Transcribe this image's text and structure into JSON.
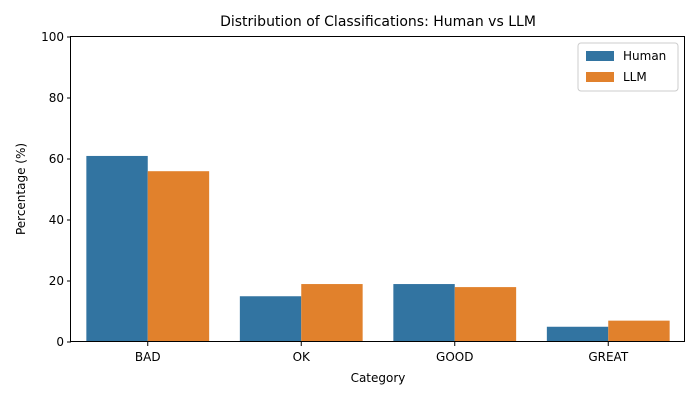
{
  "chart_data": {
    "type": "bar",
    "title": "Distribution of Classifications: Human vs LLM",
    "xlabel": "Category",
    "ylabel": "Percentage (%)",
    "categories": [
      "BAD",
      "OK",
      "GOOD",
      "GREAT"
    ],
    "series": [
      {
        "name": "Human",
        "values": [
          61,
          15,
          19,
          5
        ],
        "color": "#3274a1"
      },
      {
        "name": "LLM",
        "values": [
          56,
          19,
          18,
          7
        ],
        "color": "#e1812c"
      }
    ],
    "ylim": [
      0,
      100
    ],
    "yticks": [
      "0",
      "20",
      "40",
      "60",
      "80",
      "100"
    ],
    "grid": false,
    "legend_position": "top-right"
  }
}
